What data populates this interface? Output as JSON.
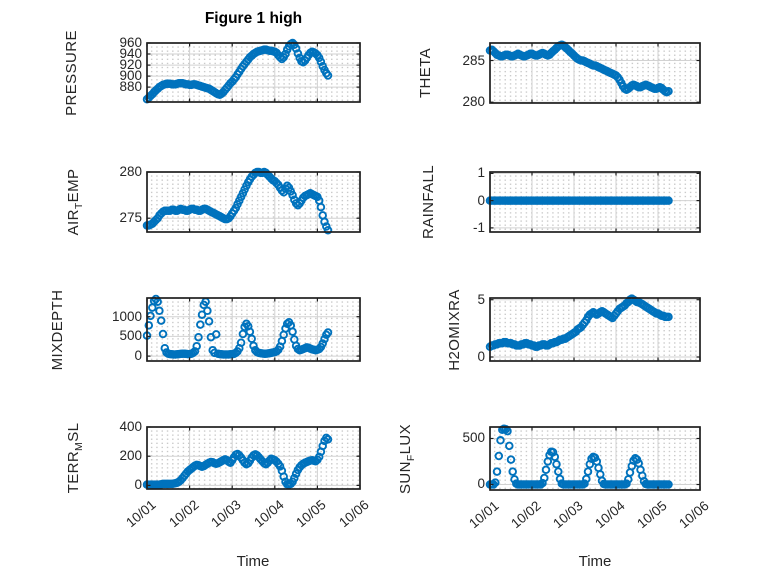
{
  "figure": {
    "title": "Figure 1 high",
    "xlabel": "Time",
    "x_tick_labels": [
      "10/01",
      "10/02",
      "10/03",
      "10/04",
      "10/05",
      "10/06"
    ],
    "accent_color": "#0072BD",
    "axis_color": "#1f1f1f",
    "grid_color": "#d2d2d2",
    "marker": "open-circle"
  },
  "chart_data": [
    {
      "id": "pressure",
      "type": "scatter",
      "ylabel": "PRESSURE",
      "ylabel_parts": {
        "pre": "PRESSURE",
        "sub": "",
        "post": ""
      },
      "yticks": [
        880,
        900,
        920,
        940,
        960
      ],
      "ylim": [
        853,
        960
      ],
      "xlim_days": [
        0,
        5
      ],
      "x_start_day": 0,
      "x_step_hours": 1,
      "grid": true,
      "values": [
        858,
        861,
        864,
        867,
        871,
        874,
        877,
        880,
        882,
        884,
        885,
        886,
        886,
        886,
        885,
        885,
        885,
        886,
        887,
        887,
        887,
        886,
        885,
        885,
        884,
        884,
        885,
        885,
        884,
        883,
        882,
        881,
        880,
        879,
        878,
        877,
        875,
        873,
        871,
        869,
        867,
        866,
        868,
        871,
        875,
        879,
        883,
        887,
        890,
        894,
        898,
        903,
        908,
        913,
        918,
        922,
        926,
        930,
        934,
        937,
        940,
        942,
        944,
        945,
        946,
        947,
        948,
        948,
        947,
        946,
        946,
        945,
        944,
        942,
        938,
        934,
        931,
        934,
        940,
        948,
        954,
        958,
        960,
        957,
        950,
        941,
        933,
        927,
        925,
        928,
        933,
        938,
        942,
        944,
        943,
        941,
        938,
        933,
        926,
        918,
        911,
        905,
        901
      ]
    },
    {
      "id": "theta",
      "type": "scatter",
      "ylabel": "THETA",
      "ylabel_parts": {
        "pre": "THETA",
        "sub": "",
        "post": ""
      },
      "yticks": [
        280,
        285
      ],
      "ylim": [
        279.9,
        287.1
      ],
      "xlim_days": [
        0,
        5
      ],
      "x_start_day": 0,
      "x_step_hours": 1,
      "grid": true,
      "values": [
        286.2,
        286.3,
        286.1,
        285.9,
        285.7,
        285.6,
        285.5,
        285.5,
        285.6,
        285.7,
        285.7,
        285.6,
        285.5,
        285.5,
        285.6,
        285.7,
        285.8,
        285.7,
        285.6,
        285.5,
        285.5,
        285.6,
        285.7,
        285.8,
        285.8,
        285.7,
        285.6,
        285.6,
        285.7,
        285.8,
        285.9,
        285.8,
        285.7,
        285.6,
        285.7,
        285.9,
        286.1,
        286.3,
        286.5,
        286.7,
        286.8,
        286.9,
        286.8,
        286.6,
        286.4,
        286.2,
        286.0,
        285.8,
        285.6,
        285.4,
        285.2,
        285.1,
        285.0,
        285.0,
        284.9,
        284.8,
        284.7,
        284.6,
        284.5,
        284.4,
        284.4,
        284.3,
        284.2,
        284.1,
        284.0,
        283.9,
        283.8,
        283.7,
        283.6,
        283.5,
        283.4,
        283.3,
        283.2,
        283.0,
        282.7,
        282.3,
        281.9,
        281.6,
        281.5,
        281.6,
        281.8,
        282.0,
        282.1,
        282.0,
        281.9,
        281.8,
        281.8,
        281.9,
        282.0,
        282.1,
        282.0,
        281.9,
        281.8,
        281.7,
        281.6,
        281.6,
        281.7,
        281.8,
        281.7,
        281.5,
        281.3,
        281.2,
        281.3
      ]
    },
    {
      "id": "air-temp",
      "type": "scatter",
      "ylabel": "AIR_TEMP",
      "ylabel_parts": {
        "pre": "AIR",
        "sub": "T",
        "post": "EMP"
      },
      "yticks": [
        275,
        280
      ],
      "ylim": [
        273.5,
        280
      ],
      "xlim_days": [
        0,
        5
      ],
      "x_start_day": 0,
      "x_step_hours": 1,
      "grid": true,
      "values": [
        274.2,
        274.2,
        274.3,
        274.4,
        274.6,
        274.8,
        275.0,
        275.3,
        275.5,
        275.7,
        275.8,
        275.8,
        275.8,
        275.8,
        275.9,
        275.9,
        275.8,
        275.8,
        275.9,
        276.0,
        275.9,
        275.9,
        275.8,
        275.8,
        275.9,
        276.0,
        276.0,
        275.9,
        275.9,
        275.8,
        275.8,
        275.9,
        276.0,
        276.0,
        275.9,
        275.8,
        275.7,
        275.6,
        275.5,
        275.4,
        275.3,
        275.2,
        275.1,
        275.0,
        274.9,
        274.9,
        275.0,
        275.2,
        275.5,
        275.8,
        276.1,
        276.5,
        276.9,
        277.3,
        277.7,
        278.1,
        278.5,
        278.9,
        279.2,
        279.5,
        279.7,
        279.9,
        280.0,
        280.0,
        279.9,
        279.9,
        280.0,
        279.9,
        279.7,
        279.5,
        279.3,
        279.1,
        279.0,
        278.8,
        278.6,
        278.3,
        278.0,
        277.8,
        278.2,
        278.5,
        278.3,
        277.9,
        277.5,
        277.0,
        276.6,
        276.4,
        276.6,
        276.9,
        277.2,
        277.4,
        277.5,
        277.6,
        277.7,
        277.6,
        277.5,
        277.4,
        277.3,
        276.9,
        276.2,
        275.3,
        274.6,
        274.1,
        273.7
      ]
    },
    {
      "id": "rainfall",
      "type": "scatter",
      "ylabel": "RAINFALL",
      "ylabel_parts": {
        "pre": "RAINFALL",
        "sub": "",
        "post": ""
      },
      "yticks": [
        -1,
        0,
        1
      ],
      "ylim": [
        -1.15,
        1.05
      ],
      "xlim_days": [
        0,
        5
      ],
      "x_start_day": 0,
      "x_step_hours": 1,
      "grid": true,
      "values": [
        0,
        0,
        0,
        0,
        0,
        0,
        0,
        0,
        0,
        0,
        0,
        0,
        0,
        0,
        0,
        0,
        0,
        0,
        0,
        0,
        0,
        0,
        0,
        0,
        0,
        0,
        0,
        0,
        0,
        0,
        0,
        0,
        0,
        0,
        0,
        0,
        0,
        0,
        0,
        0,
        0,
        0,
        0,
        0,
        0,
        0,
        0,
        0,
        0,
        0,
        0,
        0,
        0,
        0,
        0,
        0,
        0,
        0,
        0,
        0,
        0,
        0,
        0,
        0,
        0,
        0,
        0,
        0,
        0,
        0,
        0,
        0,
        0,
        0,
        0,
        0,
        0,
        0,
        0,
        0,
        0,
        0,
        0,
        0,
        0,
        0,
        0,
        0,
        0,
        0,
        0,
        0,
        0,
        0,
        0,
        0,
        0,
        0,
        0,
        0,
        0,
        0,
        0
      ]
    },
    {
      "id": "mixdepth",
      "type": "scatter",
      "ylabel": "MIXDEPTH",
      "ylabel_parts": {
        "pre": "MIXDEPTH",
        "sub": "",
        "post": ""
      },
      "yticks": [
        0,
        500,
        1000
      ],
      "ylim": [
        -125,
        1475
      ],
      "xlim_days": [
        0,
        5
      ],
      "x_start_day": 0,
      "x_step_hours": 1,
      "grid": true,
      "values": [
        520,
        780,
        1020,
        1230,
        1400,
        1450,
        1380,
        1150,
        900,
        560,
        200,
        90,
        60,
        50,
        45,
        40,
        40,
        45,
        50,
        55,
        60,
        60,
        55,
        50,
        50,
        60,
        80,
        120,
        250,
        480,
        800,
        1050,
        1300,
        1380,
        1150,
        880,
        480,
        150,
        80,
        550,
        60,
        50,
        45,
        40,
        40,
        40,
        40,
        45,
        45,
        55,
        80,
        120,
        200,
        340,
        560,
        740,
        820,
        760,
        620,
        440,
        260,
        150,
        100,
        80,
        70,
        65,
        60,
        60,
        65,
        70,
        80,
        90,
        100,
        120,
        160,
        240,
        380,
        540,
        700,
        820,
        860,
        780,
        620,
        420,
        260,
        180,
        150,
        160,
        180,
        200,
        220,
        210,
        190,
        170,
        160,
        150,
        160,
        180,
        230,
        320,
        430,
        540,
        600
      ]
    },
    {
      "id": "h2omixra",
      "type": "scatter",
      "ylabel": "H2OMIXRA",
      "ylabel_parts": {
        "pre": "H2OMIXRA",
        "sub": "",
        "post": ""
      },
      "yticks": [
        0,
        5
      ],
      "ylim": [
        -0.35,
        5.15
      ],
      "xlim_days": [
        0,
        5
      ],
      "x_start_day": 0,
      "x_step_hours": 1,
      "grid": true,
      "values": [
        0.9,
        1.0,
        1.0,
        1.1,
        1.1,
        1.2,
        1.2,
        1.2,
        1.3,
        1.3,
        1.2,
        1.2,
        1.2,
        1.1,
        1.1,
        1.0,
        1.0,
        1.0,
        1.1,
        1.1,
        1.2,
        1.2,
        1.1,
        1.1,
        1.0,
        1.0,
        0.9,
        0.9,
        1.0,
        1.0,
        1.1,
        1.1,
        1.0,
        1.0,
        1.1,
        1.2,
        1.2,
        1.3,
        1.3,
        1.4,
        1.5,
        1.5,
        1.6,
        1.6,
        1.7,
        1.8,
        1.9,
        2.0,
        2.1,
        2.2,
        2.4,
        2.5,
        2.6,
        2.8,
        3.0,
        3.2,
        3.5,
        3.7,
        3.8,
        3.9,
        3.8,
        3.7,
        3.8,
        3.9,
        4.0,
        3.9,
        3.8,
        3.7,
        3.6,
        3.5,
        3.4,
        3.6,
        3.8,
        4.0,
        4.2,
        4.3,
        4.4,
        4.5,
        4.7,
        4.8,
        5.0,
        5.1,
        5.0,
        4.9,
        4.8,
        4.8,
        4.7,
        4.6,
        4.5,
        4.4,
        4.3,
        4.2,
        4.1,
        4.0,
        3.9,
        3.8,
        3.8,
        3.7,
        3.6,
        3.6,
        3.5,
        3.5,
        3.5
      ]
    },
    {
      "id": "terr-msl",
      "type": "scatter",
      "ylabel": "TERR_MSL",
      "ylabel_parts": {
        "pre": "TERR",
        "sub": "M",
        "post": "SL"
      },
      "yticks": [
        0,
        200,
        400
      ],
      "ylim": [
        -25,
        400
      ],
      "xlim_days": [
        0,
        5
      ],
      "x_start_day": 0,
      "x_step_hours": 1,
      "grid": true,
      "values": [
        5,
        5,
        5,
        5,
        5,
        5,
        5,
        5,
        8,
        10,
        10,
        10,
        10,
        10,
        10,
        12,
        15,
        18,
        25,
        35,
        50,
        65,
        80,
        95,
        105,
        115,
        125,
        135,
        140,
        138,
        132,
        128,
        132,
        140,
        148,
        155,
        160,
        158,
        152,
        148,
        152,
        158,
        165,
        172,
        178,
        172,
        162,
        155,
        172,
        192,
        210,
        215,
        205,
        190,
        172,
        155,
        145,
        152,
        170,
        190,
        205,
        212,
        205,
        192,
        178,
        165,
        152,
        145,
        155,
        170,
        182,
        178,
        172,
        162,
        148,
        130,
        100,
        60,
        25,
        8,
        5,
        10,
        25,
        50,
        80,
        105,
        125,
        138,
        148,
        155,
        160,
        165,
        170,
        172,
        168,
        165,
        175,
        195,
        230,
        270,
        305,
        325,
        315
      ]
    },
    {
      "id": "sun-flux",
      "type": "scatter",
      "ylabel": "SUN_FLUX",
      "ylabel_parts": {
        "pre": "SUN",
        "sub": "F",
        "post": "LUX"
      },
      "yticks": [
        0,
        500
      ],
      "ylim": [
        -60,
        625
      ],
      "xlim_days": [
        0,
        5
      ],
      "x_start_day": 0,
      "x_step_hours": 1,
      "grid": true,
      "values": [
        0,
        0,
        0,
        20,
        140,
        310,
        480,
        595,
        605,
        600,
        580,
        420,
        270,
        140,
        55,
        10,
        0,
        0,
        0,
        0,
        0,
        0,
        0,
        0,
        0,
        0,
        0,
        0,
        0,
        0,
        15,
        70,
        160,
        250,
        320,
        355,
        350,
        300,
        220,
        140,
        60,
        10,
        0,
        0,
        0,
        0,
        0,
        0,
        0,
        0,
        0,
        0,
        0,
        0,
        10,
        60,
        140,
        220,
        280,
        300,
        290,
        250,
        180,
        110,
        40,
        5,
        0,
        0,
        0,
        0,
        0,
        0,
        0,
        0,
        0,
        0,
        0,
        0,
        10,
        55,
        130,
        200,
        260,
        285,
        270,
        230,
        160,
        95,
        35,
        5,
        0,
        0,
        0,
        0,
        0,
        0,
        0,
        0,
        0,
        0,
        0,
        0,
        0
      ]
    }
  ]
}
